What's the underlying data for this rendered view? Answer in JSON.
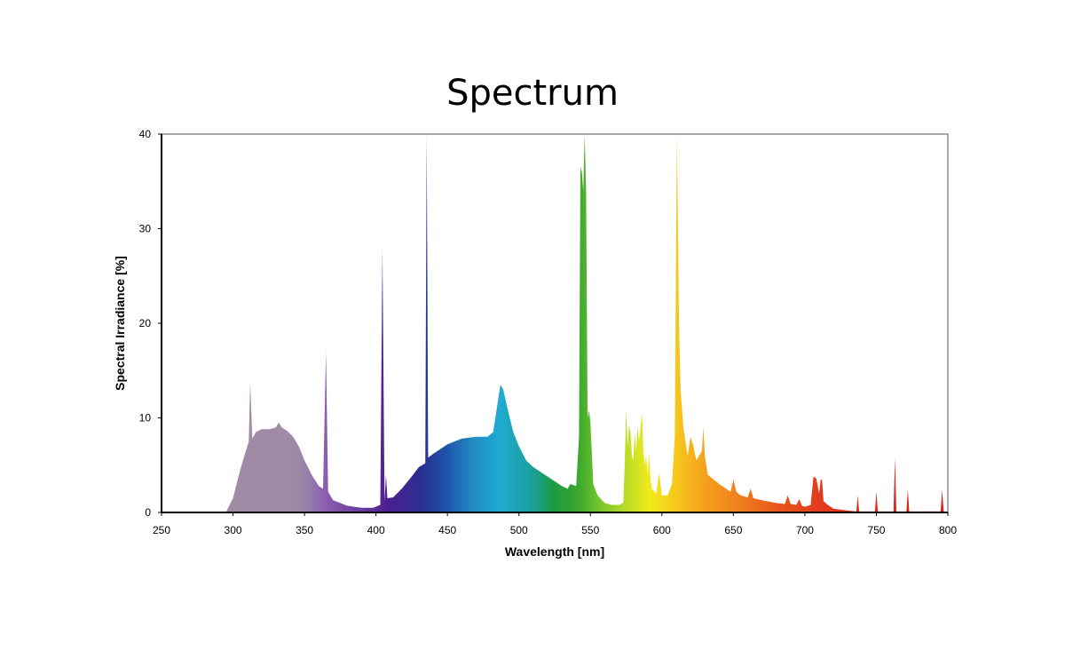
{
  "chart_data": {
    "type": "area",
    "title": "Spectrum",
    "xlabel": "Wavelength [nm]",
    "ylabel": "Spectral Irradiance [%]",
    "xlim": [
      250,
      800
    ],
    "ylim": [
      0,
      40
    ],
    "xticks": [
      250,
      300,
      350,
      400,
      450,
      500,
      550,
      600,
      650,
      700,
      750,
      800
    ],
    "yticks": [
      0,
      10,
      20,
      30,
      40
    ],
    "grid": false,
    "legend": "none",
    "series": [
      {
        "name": "Spectral Irradiance",
        "points": [
          [
            295,
            0
          ],
          [
            300,
            1.5
          ],
          [
            305,
            4.5
          ],
          [
            309,
            6.5
          ],
          [
            311,
            7.5
          ],
          [
            312,
            13.8
          ],
          [
            313.5,
            7.8
          ],
          [
            316,
            8.5
          ],
          [
            320,
            8.8
          ],
          [
            326,
            8.8
          ],
          [
            330,
            9.0
          ],
          [
            332,
            9.5
          ],
          [
            334,
            9.0
          ],
          [
            338,
            8.6
          ],
          [
            342,
            8.0
          ],
          [
            346,
            7.0
          ],
          [
            350,
            5.5
          ],
          [
            355,
            4.0
          ],
          [
            360,
            2.8
          ],
          [
            363,
            2.5
          ],
          [
            365,
            17.0
          ],
          [
            366.5,
            2.2
          ],
          [
            370,
            1.3
          ],
          [
            380,
            0.7
          ],
          [
            390,
            0.5
          ],
          [
            398,
            0.5
          ],
          [
            403,
            0.8
          ],
          [
            404.5,
            28.0
          ],
          [
            406,
            1.2
          ],
          [
            407,
            4.0
          ],
          [
            408,
            1.5
          ],
          [
            412,
            1.6
          ],
          [
            418,
            2.5
          ],
          [
            425,
            3.8
          ],
          [
            430,
            4.8
          ],
          [
            434.5,
            5.2
          ],
          [
            435.5,
            40.0
          ],
          [
            436.5,
            5.8
          ],
          [
            440,
            6.2
          ],
          [
            450,
            7.2
          ],
          [
            460,
            7.8
          ],
          [
            470,
            8.0
          ],
          [
            478,
            8.0
          ],
          [
            482,
            8.5
          ],
          [
            485,
            11.5
          ],
          [
            487,
            13.5
          ],
          [
            489,
            13.0
          ],
          [
            492,
            11.0
          ],
          [
            496,
            8.5
          ],
          [
            500,
            7.0
          ],
          [
            505,
            5.5
          ],
          [
            510,
            4.8
          ],
          [
            520,
            3.8
          ],
          [
            530,
            2.8
          ],
          [
            534,
            2.5
          ],
          [
            536,
            3.0
          ],
          [
            540,
            2.8
          ],
          [
            542,
            8.0
          ],
          [
            543,
            36.5
          ],
          [
            544,
            36.0
          ],
          [
            545,
            34.0
          ],
          [
            546,
            40.0
          ],
          [
            547,
            34.0
          ],
          [
            548,
            10.0
          ],
          [
            549,
            10.8
          ],
          [
            550,
            9.5
          ],
          [
            552,
            3.0
          ],
          [
            555,
            1.8
          ],
          [
            560,
            1.0
          ],
          [
            565,
            0.8
          ],
          [
            570,
            0.8
          ],
          [
            573,
            1.0
          ],
          [
            574,
            5.0
          ],
          [
            575,
            10.8
          ],
          [
            576,
            7.0
          ],
          [
            577,
            9.2
          ],
          [
            578,
            8.5
          ],
          [
            579,
            6.0
          ],
          [
            580,
            5.5
          ],
          [
            581,
            8.3
          ],
          [
            582,
            6.5
          ],
          [
            583,
            9.0
          ],
          [
            584,
            7.5
          ],
          [
            586,
            10.5
          ],
          [
            587,
            6.5
          ],
          [
            588,
            5.0
          ],
          [
            589,
            6.0
          ],
          [
            590,
            4.0
          ],
          [
            591,
            6.3
          ],
          [
            592,
            3.5
          ],
          [
            593,
            2.5
          ],
          [
            596,
            2.0
          ],
          [
            598,
            4.2
          ],
          [
            600,
            1.8
          ],
          [
            604,
            1.8
          ],
          [
            607,
            3.0
          ],
          [
            609,
            8.0
          ],
          [
            610.5,
            40.0
          ],
          [
            612,
            20.0
          ],
          [
            613,
            13.0
          ],
          [
            615,
            9.0
          ],
          [
            617,
            7.0
          ],
          [
            618,
            6.0
          ],
          [
            620,
            8.0
          ],
          [
            622,
            7.0
          ],
          [
            624,
            5.5
          ],
          [
            626,
            6.0
          ],
          [
            628,
            6.5
          ],
          [
            629,
            9.0
          ],
          [
            630,
            6.0
          ],
          [
            632,
            4.0
          ],
          [
            640,
            3.0
          ],
          [
            648,
            2.2
          ],
          [
            650,
            3.5
          ],
          [
            652,
            2.2
          ],
          [
            655,
            1.8
          ],
          [
            660,
            1.6
          ],
          [
            662,
            2.5
          ],
          [
            664,
            1.5
          ],
          [
            670,
            1.3
          ],
          [
            680,
            1.0
          ],
          [
            686,
            0.9
          ],
          [
            688,
            1.8
          ],
          [
            690,
            0.9
          ],
          [
            694,
            0.8
          ],
          [
            696,
            1.4
          ],
          [
            698,
            0.7
          ],
          [
            700,
            0.6
          ],
          [
            704,
            0.8
          ],
          [
            706,
            3.8
          ],
          [
            708,
            3.6
          ],
          [
            710,
            2.0
          ],
          [
            711,
            3.4
          ],
          [
            712,
            3.5
          ],
          [
            713,
            1.2
          ],
          [
            716,
            0.8
          ],
          [
            720,
            0.4
          ],
          [
            730,
            0.2
          ],
          [
            736,
            0.1
          ],
          [
            737,
            1.8
          ],
          [
            738,
            0.1
          ],
          [
            749,
            0.1
          ],
          [
            750,
            2.2
          ],
          [
            751,
            0.1
          ],
          [
            762,
            0.1
          ],
          [
            763,
            5.8
          ],
          [
            764,
            0.1
          ],
          [
            771,
            0.1
          ],
          [
            772,
            2.4
          ],
          [
            773,
            0.1
          ],
          [
            795,
            0.1
          ],
          [
            796,
            2.4
          ],
          [
            797,
            0.1
          ],
          [
            800,
            0
          ]
        ]
      }
    ]
  }
}
